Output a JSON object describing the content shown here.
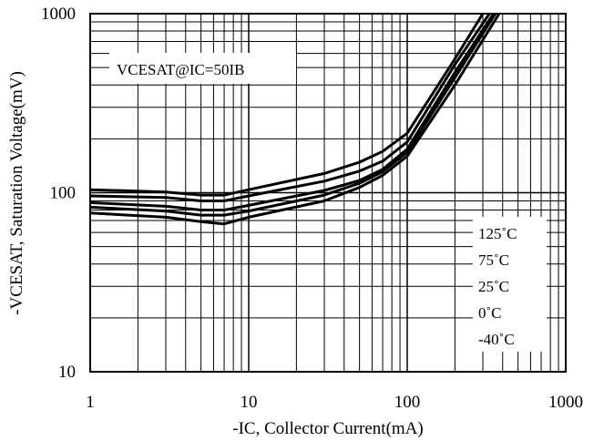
{
  "chart_data": {
    "type": "line",
    "title": "",
    "xlabel": "-IC, Collector Current(mA)",
    "ylabel": "-VCESAT, Saturation Voltage(mV)",
    "xscale": "log",
    "yscale": "log",
    "xlim": [
      1,
      1000
    ],
    "ylim": [
      10,
      1000
    ],
    "grid": true,
    "x_ticks": [
      "1",
      "10",
      "100",
      "1000"
    ],
    "y_ticks": [
      "10",
      "100",
      "1000"
    ],
    "condition_label": "VCESAT@IC=50IB",
    "legend_position": "bottom-right",
    "legend_labels": [
      "125˚C",
      "75˚C",
      "25˚C",
      "0˚C",
      "-40˚C"
    ],
    "series": [
      {
        "name": "125˚C",
        "points": [
          [
            1,
            104
          ],
          [
            3,
            101
          ],
          [
            5,
            97
          ],
          [
            7,
            97
          ],
          [
            10,
            104
          ],
          [
            30,
            128
          ],
          [
            50,
            148
          ],
          [
            70,
            170
          ],
          [
            100,
            215
          ],
          [
            200,
            560
          ],
          [
            300,
            1000
          ]
        ]
      },
      {
        "name": "75˚C",
        "points": [
          [
            1,
            96
          ],
          [
            3,
            94
          ],
          [
            5,
            90
          ],
          [
            7,
            90
          ],
          [
            10,
            96
          ],
          [
            30,
            116
          ],
          [
            50,
            132
          ],
          [
            70,
            150
          ],
          [
            100,
            192
          ],
          [
            200,
            520
          ],
          [
            330,
            1000
          ]
        ]
      },
      {
        "name": "25˚C",
        "points": [
          [
            1,
            88
          ],
          [
            3,
            84
          ],
          [
            5,
            80
          ],
          [
            7,
            80
          ],
          [
            10,
            85
          ],
          [
            30,
            103
          ],
          [
            50,
            117
          ],
          [
            70,
            135
          ],
          [
            100,
            175
          ],
          [
            200,
            470
          ],
          [
            350,
            1000
          ]
        ]
      },
      {
        "name": "0˚C",
        "points": [
          [
            1,
            83
          ],
          [
            3,
            79
          ],
          [
            5,
            75
          ],
          [
            7,
            75
          ],
          [
            10,
            79
          ],
          [
            30,
            97
          ],
          [
            50,
            113
          ],
          [
            70,
            131
          ],
          [
            100,
            168
          ],
          [
            200,
            440
          ],
          [
            360,
            1000
          ]
        ]
      },
      {
        "name": "-40˚C",
        "points": [
          [
            1,
            77
          ],
          [
            3,
            73
          ],
          [
            5,
            69
          ],
          [
            7,
            67
          ],
          [
            10,
            73
          ],
          [
            30,
            90
          ],
          [
            50,
            107
          ],
          [
            70,
            125
          ],
          [
            100,
            160
          ],
          [
            200,
            400
          ],
          [
            380,
            1000
          ]
        ]
      }
    ]
  }
}
